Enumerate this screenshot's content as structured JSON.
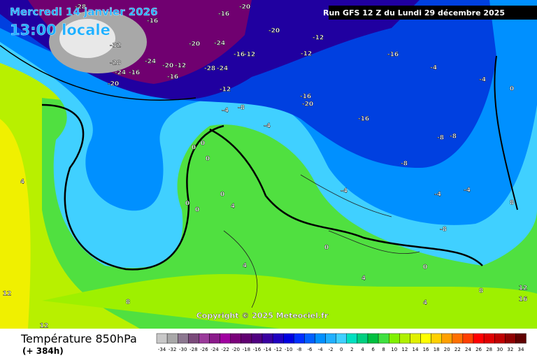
{
  "header": {
    "date": "Mercredi 14 janvier 2026",
    "time": "13:00 locale",
    "run": "Run GFS 12 Z du Lundi 29 décembre 2025"
  },
  "copyright": "Copyright © 2025 Meteociel.fr",
  "footer": {
    "title": "Température 850hPa",
    "lead": "(+ 384h)"
  },
  "legend": {
    "values": [
      -34,
      -32,
      -30,
      -28,
      -26,
      -24,
      -22,
      -20,
      -18,
      -16,
      -14,
      -12,
      -10,
      -8,
      -6,
      -4,
      -2,
      0,
      2,
      4,
      6,
      8,
      10,
      12,
      14,
      16,
      18,
      20,
      22,
      24,
      26,
      28,
      30,
      32,
      34
    ],
    "colors": [
      "#c8c8c8",
      "#a8a8a8",
      "#8c7890",
      "#7a4a7a",
      "#9a3a9a",
      "#8a1a8a",
      "#a000a0",
      "#7a007a",
      "#600070",
      "#500080",
      "#3a00a0",
      "#2000c0",
      "#0000e0",
      "#0030ff",
      "#0060ff",
      "#0090ff",
      "#20b0ff",
      "#40d0ff",
      "#00e0c0",
      "#00d080",
      "#00c040",
      "#40e040",
      "#80f000",
      "#b0f000",
      "#e0f000",
      "#ffff00",
      "#ffd000",
      "#ffa000",
      "#ff7000",
      "#ff4000",
      "#ff0000",
      "#e00000",
      "#c00000",
      "#900000",
      "#600000"
    ]
  },
  "map_labels": [
    "-28",
    "-16",
    "-32",
    "-28",
    "-24",
    "-16",
    "-24",
    "-20",
    "-12",
    "-20",
    "-16",
    "-20",
    "-24",
    "-16",
    "-20",
    "-20",
    "-12",
    "-12",
    "-16",
    "-28",
    "-24",
    "-16",
    "-12",
    "-12",
    "-16",
    "-20",
    "-16",
    "-8",
    "-4",
    "-4",
    "-4",
    "-4",
    "0",
    "-8",
    "-8",
    "-8",
    "-4",
    "-4",
    "-8",
    "-4",
    "0",
    "0",
    "0",
    "0",
    "0",
    "0",
    "4",
    "4",
    "4",
    "8",
    "12",
    "12",
    "4",
    "8",
    "0",
    "0",
    "4",
    "8",
    "12",
    "16"
  ]
}
